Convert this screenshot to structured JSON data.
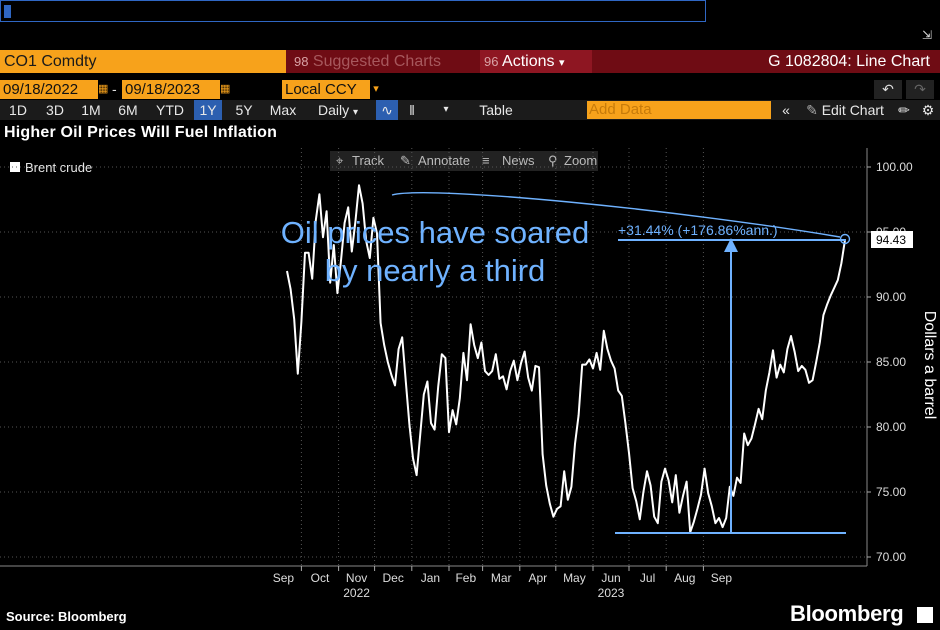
{
  "header": {
    "ticker": "CO1 Comdty",
    "suggested": "Suggested Charts",
    "suggested_key": "98",
    "actions_key": "96",
    "actions": "Actions",
    "graph_title": "G 1082804: Line Chart"
  },
  "dates": {
    "start": "09/18/2022",
    "end": "09/18/2023",
    "currency": "Local CCY"
  },
  "toolbar": {
    "periods": [
      "1D",
      "3D",
      "1M",
      "6M",
      "YTD",
      "1Y",
      "5Y",
      "Max"
    ],
    "selected_period": "1Y",
    "frequency": "Daily",
    "table": "Table",
    "add_data": "Add Data",
    "edit_chart": "Edit Chart"
  },
  "chart_tools": {
    "track": "Track",
    "annotate": "Annotate",
    "news": "News",
    "zoom": "Zoom"
  },
  "annotation": {
    "text_line1": "Oil prices have soared",
    "text_line2": "by nearly a third",
    "change_label": "+31.44% (+176.86%ann.)"
  },
  "footer": {
    "source": "Source: Bloomberg",
    "brand": "Bloomberg"
  },
  "colors": {
    "accent_orange": "#f7a21b",
    "header_red": "#6f0c14",
    "annotation_blue": "#6fb2ff",
    "line": "#ffffff"
  },
  "chart_data": {
    "type": "line",
    "title": "Higher Oil Prices Will Fuel Inflation",
    "ylabel": "Dollars a barrel",
    "ylim": [
      69,
      101
    ],
    "yticks": [
      70.0,
      75.0,
      80.0,
      85.0,
      90.0,
      95.0,
      100.0
    ],
    "ytick_labels": [
      "70.00",
      "75.00",
      "80.00",
      "85.00",
      "90.00",
      "95.00",
      "100.00"
    ],
    "last_value_label": "94.43",
    "months": [
      "Sep",
      "Oct",
      "Nov",
      "Dec",
      "Jan",
      "Feb",
      "Mar",
      "Apr",
      "May",
      "Jun",
      "Jul",
      "Aug",
      "Sep"
    ],
    "year_labels": [
      {
        "month_index": 2,
        "label": "2022"
      },
      {
        "month_index": 9,
        "label": "2023"
      }
    ],
    "series": [
      {
        "name": "Brent crude",
        "x_start": "2022-09-19",
        "step_days": 3,
        "values": [
          92.0,
          90.6,
          88.3,
          84.1,
          88.1,
          93.4,
          93.4,
          91.4,
          95.9,
          97.9,
          94.6,
          96.6,
          91.1,
          94.0,
          90.3,
          92.8,
          95.7,
          96.9,
          93.5,
          95.8,
          98.6,
          97.2,
          94.3,
          93.0,
          96.1,
          94.9,
          88.0,
          86.3,
          85.0,
          84.0,
          83.2,
          86.0,
          86.9,
          83.5,
          80.2,
          77.6,
          76.3,
          79.4,
          82.5,
          83.5,
          80.3,
          79.8,
          83.1,
          85.6,
          85.3,
          79.6,
          81.3,
          80.2,
          82.2,
          85.7,
          83.6,
          87.9,
          86.3,
          85.3,
          86.5,
          84.3,
          84.0,
          84.3,
          85.6,
          83.7,
          83.9,
          82.9,
          84.3,
          85.1,
          83.6,
          84.9,
          85.8,
          83.8,
          82.8,
          84.7,
          84.6,
          77.9,
          75.5,
          74.1,
          73.1,
          73.7,
          73.9,
          76.6,
          74.4,
          75.4,
          78.7,
          80.9,
          84.8,
          84.8,
          85.2,
          84.5,
          85.7,
          84.4,
          87.4,
          86.0,
          85.1,
          84.5,
          82.8,
          82.4,
          80.3,
          78.0,
          75.3,
          74.3,
          72.9,
          75.0,
          76.6,
          75.5,
          73.1,
          72.6,
          75.8,
          76.8,
          75.9,
          74.2,
          76.3,
          73.4,
          74.7,
          75.8,
          71.9,
          72.7,
          73.7,
          74.8,
          76.8,
          74.9,
          73.9,
          72.6,
          73.0,
          72.3,
          73.0,
          75.4,
          74.7,
          76.1,
          75.7,
          79.5,
          78.6,
          79.1,
          80.2,
          81.4,
          80.6,
          82.8,
          84.2,
          85.9,
          83.8,
          84.8,
          84.2,
          86.0,
          87.0,
          85.8,
          84.3,
          84.7,
          84.4,
          83.4,
          83.6,
          85.0,
          86.5,
          88.6,
          89.4,
          90.1,
          90.7,
          91.3,
          92.6,
          94.4
        ]
      }
    ]
  }
}
